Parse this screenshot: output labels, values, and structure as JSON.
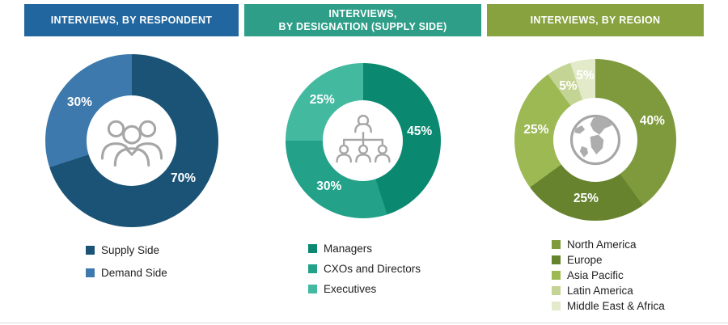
{
  "chart_data": [
    {
      "type": "pie",
      "donut": true,
      "title": "INTERVIEWS, BY RESPONDENT",
      "header_bg": "#21669F",
      "center_icon": "people-group-icon",
      "legend_position": "bottom-left",
      "segments": [
        {
          "label": "Supply Side",
          "value_pct": 70,
          "display": "70%",
          "color": "#1A5376"
        },
        {
          "label": "Demand Side",
          "value_pct": 30,
          "display": "30%",
          "color": "#3D79AC"
        }
      ]
    },
    {
      "type": "pie",
      "donut": true,
      "title": "INTERVIEWS,\nBY DESIGNATION (SUPPLY SIDE)",
      "header_bg": "#2E9E88",
      "center_icon": "org-chart-icon",
      "legend_position": "bottom-left",
      "segments": [
        {
          "label": "Managers",
          "value_pct": 45,
          "display": "45%",
          "color": "#0A8970"
        },
        {
          "label": "CXOs and Directors",
          "value_pct": 30,
          "display": "30%",
          "color": "#23A189"
        },
        {
          "label": "Executives",
          "value_pct": 25,
          "display": "25%",
          "color": "#43B9A0"
        }
      ]
    },
    {
      "type": "pie",
      "donut": true,
      "title": "INTERVIEWS, BY REGION",
      "header_bg": "#87A23E",
      "center_icon": "globe-icon",
      "legend_position": "bottom-left",
      "segments": [
        {
          "label": "North America",
          "value_pct": 40,
          "display": "40%",
          "color": "#7E9A3D"
        },
        {
          "label": "Europe",
          "value_pct": 25,
          "display": "25%",
          "color": "#67832E"
        },
        {
          "label": "Asia Pacific",
          "value_pct": 25,
          "display": "25%",
          "color": "#9DB954"
        },
        {
          "label": "Latin America",
          "value_pct": 5,
          "display": "5%",
          "color": "#C4D494",
          "label_radius": 0.74
        },
        {
          "label": "Middle East & Africa",
          "value_pct": 5,
          "display": "5%",
          "color": "#E3EACA",
          "label_radius": 0.8
        }
      ]
    }
  ]
}
